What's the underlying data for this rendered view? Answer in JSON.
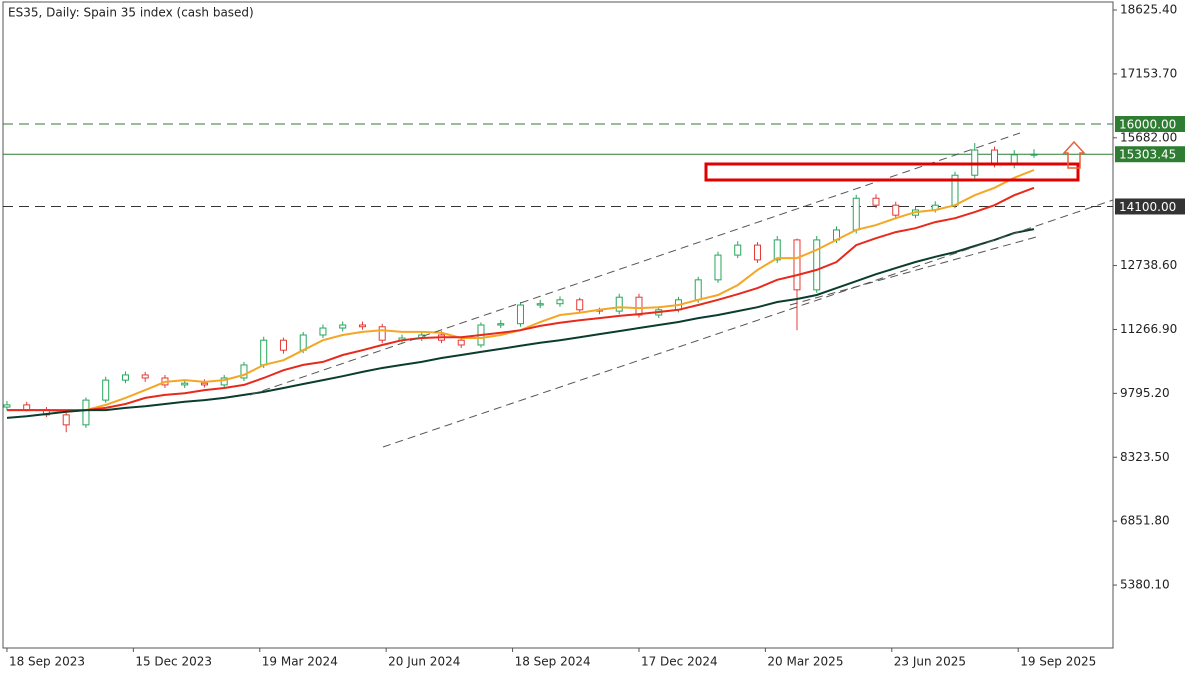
{
  "chart_data": {
    "type": "candlestick",
    "title": "ES35, Daily:  Spain 35 index (cash based)",
    "open": [
      9480,
      9530,
      9410,
      9300,
      9070,
      9640,
      10100,
      10220,
      10150,
      9990,
      10030,
      9990,
      10150,
      10450,
      11020,
      10790,
      11140,
      11300,
      11370,
      11330,
      11020,
      11070,
      11140,
      11020,
      10910,
      11370,
      11400,
      11830,
      11860,
      11950,
      11720,
      11690,
      12010,
      11600,
      11720,
      11950,
      12410,
      12980,
      13210,
      12870,
      13330,
      12180,
      13330,
      13560,
      14290,
      14130,
      13900,
      14020,
      14130,
      14820,
      15400,
      15060,
      15290
    ],
    "high": [
      9620,
      9600,
      9480,
      9380,
      9700,
      10180,
      10300,
      10290,
      10220,
      10100,
      10120,
      10220,
      10520,
      11100,
      11080,
      11210,
      11380,
      11450,
      11450,
      11400,
      11150,
      11220,
      11230,
      11110,
      11430,
      11480,
      11900,
      11950,
      12030,
      12000,
      11770,
      12090,
      12090,
      11800,
      12020,
      12480,
      13060,
      13300,
      13280,
      13420,
      13360,
      13420,
      13640,
      14370,
      14380,
      14210,
      14100,
      14220,
      14900,
      15560,
      15480,
      15400,
      15420
    ],
    "low": [
      9400,
      9380,
      9250,
      8900,
      9000,
      9580,
      10030,
      10060,
      9920,
      9920,
      9930,
      9920,
      10080,
      10380,
      10710,
      10720,
      11070,
      11220,
      11260,
      10950,
      10960,
      11000,
      10950,
      10840,
      10850,
      11300,
      11330,
      11760,
      11790,
      11650,
      11620,
      11620,
      11540,
      11530,
      11660,
      11880,
      12340,
      12910,
      12800,
      12800,
      11250,
      12110,
      13260,
      13480,
      14060,
      13830,
      13830,
      13960,
      14060,
      14750,
      15000,
      14980,
      15220
    ],
    "close": [
      9530,
      9410,
      9300,
      9070,
      9640,
      10100,
      10220,
      10150,
      9990,
      10030,
      9990,
      10150,
      10450,
      11020,
      10790,
      11140,
      11300,
      11370,
      11330,
      11020,
      11070,
      11140,
      11020,
      10910,
      11370,
      11400,
      11830,
      11860,
      11950,
      11720,
      11690,
      12010,
      11600,
      11720,
      11950,
      12410,
      12980,
      13210,
      12870,
      13330,
      12180,
      13330,
      13560,
      14290,
      14130,
      13900,
      14020,
      14130,
      14820,
      15400,
      15060,
      15290,
      15303.45
    ],
    "up_color": "#26a65b",
    "down_color": "#e53935",
    "overlays": [
      {
        "color": "#f5a623",
        "values": [
          9410,
          9410,
          9410,
          9370,
          9410,
          9530,
          9690,
          9870,
          10060,
          10100,
          10060,
          10100,
          10220,
          10450,
          10560,
          10790,
          11020,
          11140,
          11210,
          11250,
          11210,
          11210,
          11190,
          11070,
          11070,
          11140,
          11250,
          11440,
          11600,
          11650,
          11720,
          11780,
          11760,
          11780,
          11830,
          11950,
          12060,
          12290,
          12640,
          12910,
          12910,
          13100,
          13330,
          13560,
          13670,
          13830,
          13970,
          14020,
          14130,
          14360,
          14530,
          14760,
          14940
        ]
      },
      {
        "color": "#e8291c",
        "values": [
          9410,
          9410,
          9410,
          9410,
          9410,
          9460,
          9550,
          9690,
          9760,
          9800,
          9870,
          9920,
          9990,
          10150,
          10330,
          10450,
          10520,
          10680,
          10790,
          10910,
          11020,
          11070,
          11090,
          11090,
          11140,
          11190,
          11250,
          11350,
          11420,
          11480,
          11530,
          11580,
          11620,
          11670,
          11720,
          11830,
          11950,
          12080,
          12220,
          12410,
          12520,
          12640,
          12820,
          13210,
          13370,
          13510,
          13600,
          13740,
          13830,
          13970,
          14130,
          14360,
          14530
        ]
      },
      {
        "color": "#0b3d2e",
        "values": [
          9230,
          9270,
          9320,
          9370,
          9410,
          9410,
          9460,
          9500,
          9550,
          9600,
          9640,
          9690,
          9760,
          9830,
          9920,
          10010,
          10100,
          10190,
          10290,
          10380,
          10450,
          10520,
          10610,
          10680,
          10750,
          10820,
          10890,
          10960,
          11020,
          11090,
          11160,
          11230,
          11300,
          11370,
          11440,
          11530,
          11600,
          11690,
          11780,
          11900,
          11970,
          12060,
          12220,
          12380,
          12540,
          12680,
          12820,
          12940,
          13050,
          13190,
          13330,
          13490,
          13580
        ]
      }
    ],
    "levels": [
      {
        "value": 16000,
        "label": "16000.00",
        "color": "#2e7d32",
        "style": "dashed"
      },
      {
        "value": 15303.45,
        "color": "#2e7d32",
        "style": "solid"
      },
      {
        "value": 14100,
        "label": "14100.00",
        "color": "#333333",
        "style": "dashed"
      }
    ],
    "xlim": [
      -0.2,
      56
    ],
    "xticks": [
      {
        "value": 0,
        "label": "18 Sep 2023"
      },
      {
        "value": 6.4,
        "label": "15 Dec 2023"
      },
      {
        "value": 12.8,
        "label": "19 Mar 2024"
      },
      {
        "value": 19.2,
        "label": "20 Jun 2024"
      },
      {
        "value": 25.6,
        "label": "18 Sep 2024"
      },
      {
        "value": 32,
        "label": "17 Dec 2024"
      },
      {
        "value": 38.4,
        "label": "20 Mar 2025"
      },
      {
        "value": 44.8,
        "label": "23 Jun 2025"
      },
      {
        "value": 51.2,
        "label": "19 Sep 2025"
      }
    ],
    "ylim": [
      3930,
      18810
    ],
    "yticks": [
      {
        "value": 18625.4,
        "label": "18625.40"
      },
      {
        "value": 17153.7,
        "label": "17153.70"
      },
      {
        "value": 15682,
        "label": "15682.00"
      },
      {
        "value": 12738.6,
        "label": "12738.60"
      },
      {
        "value": 11266.9,
        "label": "11266.90"
      },
      {
        "value": 9795.2,
        "label": "9795.20"
      },
      {
        "value": 8323.5,
        "label": "8323.50"
      },
      {
        "value": 6851.8,
        "label": "6851.80"
      },
      {
        "value": 5380.1,
        "label": "5380.10"
      }
    ]
  }
}
